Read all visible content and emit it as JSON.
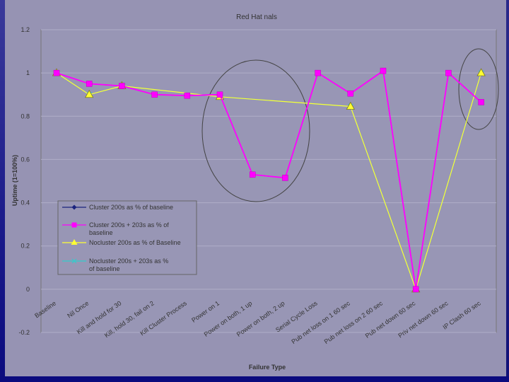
{
  "chart_data": {
    "type": "line",
    "title": "Red Hat   nals",
    "xlabel": "Failure Type",
    "ylabel": "Uptime (1=100%)",
    "ylim": [
      -0.2,
      1.2
    ],
    "yticks": [
      "-0.2",
      "0",
      "0.2",
      "0.4",
      "0.6",
      "0.8",
      "1",
      "1.2"
    ],
    "grid": true,
    "legend_position": "left-lower",
    "categories": [
      "Baseline",
      "Nil Once",
      "Kill and hold for 30",
      "Kill, hold 30, fail on 2",
      "Kill Cluster Process",
      "Power on 1",
      "Power on both, 1 up",
      "Power on both, 2 up",
      "Serial Cycle Loss",
      "Pub net loss on 1 60 sec",
      "Pub net loss on 2 60 sec",
      "Pub net down 60 sec",
      "Priv net down 60 sec",
      "IP Clash 60 sec"
    ],
    "series": [
      {
        "name": "Cluster 200s as % of baseline",
        "color": "#1a237e",
        "marker": "diamond",
        "values": [
          1.0,
          0.95,
          0.94,
          0.9,
          0.895,
          0.9,
          0.53,
          0.515,
          1.0,
          0.905,
          1.01,
          0.0,
          1.0,
          0.865
        ]
      },
      {
        "name": "Cluster 200s + 203s as % of baseline",
        "color": "#ff00ff",
        "marker": "square",
        "values": [
          1.0,
          0.95,
          0.94,
          0.9,
          0.895,
          0.9,
          0.53,
          0.515,
          1.0,
          0.905,
          1.01,
          0.0,
          1.0,
          0.865
        ]
      },
      {
        "name": "Nocluster 200s as % of Baseline",
        "color": "#ffff33",
        "marker": "triangle",
        "values": [
          1.0,
          0.9,
          0.94,
          null,
          null,
          0.89,
          null,
          null,
          null,
          0.845,
          null,
          0.0,
          null,
          1.0
        ]
      },
      {
        "name": "Nocluster 200s + 203s as % of baseline",
        "color": "#33cccc",
        "marker": "x",
        "values": [
          1.0,
          0.9,
          0.94,
          null,
          null,
          0.89,
          null,
          null,
          null,
          0.845,
          null,
          0.0,
          null,
          1.0
        ]
      }
    ]
  }
}
